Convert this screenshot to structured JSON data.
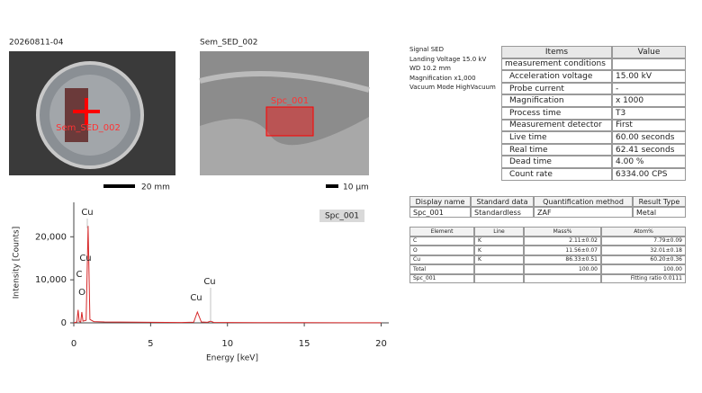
{
  "images": [
    {
      "label": "20260811-04",
      "overlay": "Sem_SED_002",
      "scale": "20 mm"
    },
    {
      "label": "Sem_SED_002",
      "overlay": "Spc_001",
      "scale": "10 μm"
    }
  ],
  "metadata": [
    "Signal SED",
    "Landing Voltage 15.0 kV",
    "WD 10.2 mm",
    "Magnification x1,000",
    "Vacuum Mode HighVacuum"
  ],
  "conditions": {
    "header": [
      "Items",
      "Value"
    ],
    "rows": [
      [
        "measurement conditions",
        null
      ],
      [
        "Acceleration voltage",
        "15.00 kV"
      ],
      [
        "Probe current",
        "-"
      ],
      [
        "Magnification",
        "x 1000"
      ],
      [
        "Process time",
        "T3"
      ],
      [
        "Measurement detector",
        "First"
      ],
      [
        "Live time",
        "60.00 seconds"
      ],
      [
        "Real time",
        "62.41 seconds"
      ],
      [
        "Dead time",
        "4.00 %"
      ],
      [
        "Count rate",
        "6334.00 CPS"
      ]
    ]
  },
  "analysis": {
    "header": [
      "Display name",
      "Standard data",
      "Quantification method",
      "Result Type"
    ],
    "rows": [
      [
        "Spc_001",
        "Standardless",
        "ZAF",
        "Metal"
      ]
    ]
  },
  "results": {
    "header": [
      "Element",
      "Line",
      "Mass%",
      "Atom%"
    ],
    "rows": [
      [
        "C",
        "K",
        "2.11±0.02",
        "7.79±0.09"
      ],
      [
        "O",
        "K",
        "11.56±0.07",
        "32.01±0.18"
      ],
      [
        "Cu",
        "K",
        "86.33±0.51",
        "60.20±0.36"
      ],
      [
        "Total",
        null,
        "100.00",
        "100.00"
      ],
      [
        "Spc_001",
        null,
        null,
        "Fitting ratio 0.0111"
      ]
    ]
  },
  "chart_data": {
    "type": "line",
    "title": "Spc_001",
    "x_label": "Energy [keV]",
    "y_label": "Intensity [Counts]",
    "peak_labels": [
      "Cu",
      "Cu",
      "C",
      "O",
      "Cu",
      "Cu"
    ],
    "x": [
      0,
      0.2,
      0.28,
      0.35,
      0.45,
      0.52,
      0.6,
      0.8,
      0.93,
      1.05,
      1.3,
      2,
      3,
      4,
      5,
      6,
      7,
      7.8,
      8.04,
      8.3,
      8.7,
      8.9,
      9.1,
      10,
      12,
      15,
      20
    ],
    "values": [
      0,
      200,
      3000,
      300,
      200,
      2500,
      400,
      600,
      22500,
      800,
      300,
      200,
      180,
      150,
      120,
      100,
      90,
      150,
      2500,
      200,
      120,
      400,
      100,
      80,
      60,
      40,
      20
    ],
    "color": "#d62728",
    "xlim": [
      0,
      20.5
    ],
    "ylim": [
      0,
      28000
    ],
    "xticks": [
      0,
      5,
      10,
      15,
      20
    ],
    "yticks": [
      0,
      {
        "value": 10000,
        "label": "10,000"
      },
      {
        "value": 20000,
        "label": "20,000"
      }
    ]
  }
}
